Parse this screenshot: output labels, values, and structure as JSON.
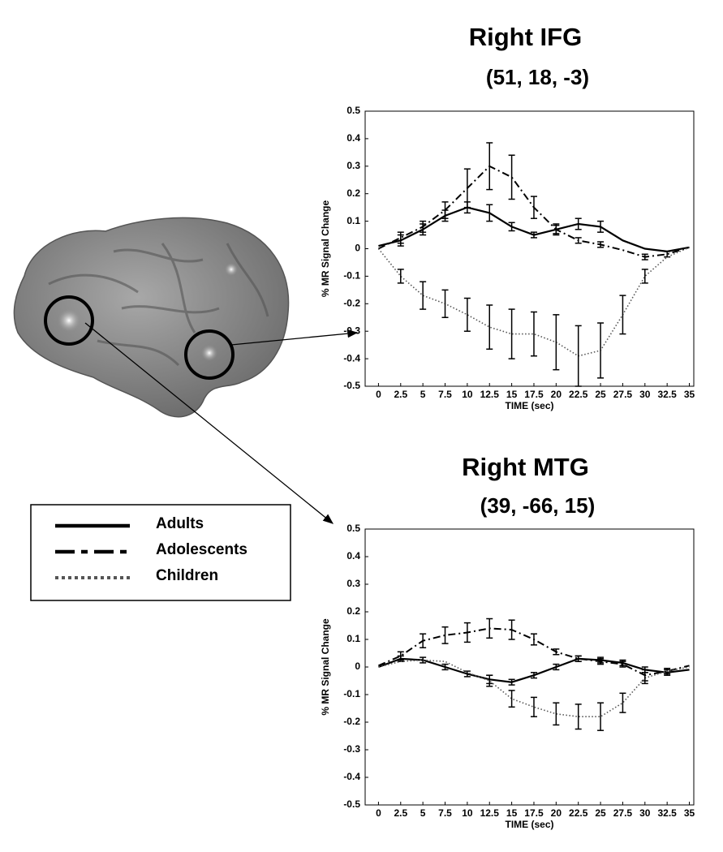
{
  "chart_data": [
    {
      "type": "line",
      "title": "Right IFG",
      "subtitle": "(51, 18, -3)",
      "x_label": "TIME (sec)",
      "y_label": "% MR Signal Change",
      "x": [
        0,
        2.5,
        5,
        7.5,
        10,
        12.5,
        15,
        17.5,
        20,
        22.5,
        25,
        27.5,
        30,
        32.5,
        35
      ],
      "xlim": [
        -1.5,
        35.5
      ],
      "xticks": [
        0,
        2.5,
        5,
        7.5,
        10,
        12.5,
        15,
        17.5,
        20,
        22.5,
        25,
        27.5,
        30,
        32.5,
        35
      ],
      "ylim": [
        -0.5,
        0.5
      ],
      "yticks": [
        -0.5,
        -0.4,
        -0.3,
        -0.2,
        -0.1,
        0,
        0.1,
        0.2,
        0.3,
        0.4,
        0.5
      ],
      "series": [
        {
          "name": "Adults",
          "color": "#000000",
          "style": "solid",
          "values": [
            0.01,
            0.03,
            0.07,
            0.12,
            0.15,
            0.13,
            0.08,
            0.05,
            0.07,
            0.09,
            0.08,
            0.03,
            0.0,
            -0.01,
            0.005
          ],
          "errors": [
            null,
            0.02,
            0.02,
            0.02,
            0.02,
            0.03,
            0.015,
            0.01,
            0.015,
            0.02,
            0.02,
            null,
            null,
            null,
            null
          ]
        },
        {
          "name": "Adolescents",
          "color": "#000000",
          "style": "dashdot",
          "values": [
            0.0,
            0.04,
            0.08,
            0.14,
            0.22,
            0.3,
            0.26,
            0.15,
            0.07,
            0.03,
            0.015,
            -0.005,
            -0.03,
            -0.02,
            0.005
          ],
          "errors": [
            null,
            0.02,
            0.02,
            0.03,
            0.07,
            0.085,
            0.08,
            0.04,
            0.02,
            0.01,
            0.01,
            null,
            0.01,
            0.01,
            null
          ]
        },
        {
          "name": "Children",
          "color": "#555555",
          "style": "dotted",
          "values": [
            0.0,
            -0.1,
            -0.17,
            -0.2,
            -0.24,
            -0.285,
            -0.31,
            -0.31,
            -0.34,
            -0.39,
            -0.37,
            -0.24,
            -0.1,
            -0.03,
            0.005
          ],
          "errors": [
            null,
            0.025,
            0.05,
            0.05,
            0.06,
            0.08,
            0.09,
            0.08,
            0.1,
            0.11,
            0.1,
            0.07,
            0.025,
            null,
            null
          ]
        }
      ]
    },
    {
      "type": "line",
      "title": "Right MTG",
      "subtitle": "(39, -66, 15)",
      "x_label": "TIME (sec)",
      "y_label": "% MR Signal Change",
      "x": [
        0,
        2.5,
        5,
        7.5,
        10,
        12.5,
        15,
        17.5,
        20,
        22.5,
        25,
        27.5,
        30,
        32.5,
        35
      ],
      "xlim": [
        -1.5,
        35.5
      ],
      "xticks": [
        0,
        2.5,
        5,
        7.5,
        10,
        12.5,
        15,
        17.5,
        20,
        22.5,
        25,
        27.5,
        30,
        32.5,
        35
      ],
      "ylim": [
        -0.5,
        0.5
      ],
      "yticks": [
        -0.5,
        -0.4,
        -0.3,
        -0.2,
        -0.1,
        0,
        0.1,
        0.2,
        0.3,
        0.4,
        0.5
      ],
      "series": [
        {
          "color": "#000000",
          "style": "solid",
          "values": [
            0.0,
            0.03,
            0.025,
            0.0,
            -0.025,
            -0.045,
            -0.055,
            -0.03,
            0.0,
            0.03,
            0.025,
            0.015,
            -0.01,
            -0.02,
            -0.01
          ],
          "errors": [
            null,
            0.01,
            0.01,
            0.01,
            0.01,
            0.015,
            0.01,
            0.01,
            0.01,
            0.01,
            0.01,
            0.01,
            0.01,
            0.01,
            null
          ]
        },
        {
          "color": "#000000",
          "style": "dashdot",
          "values": [
            0.005,
            0.04,
            0.095,
            0.115,
            0.125,
            0.14,
            0.135,
            0.1,
            0.055,
            0.03,
            0.02,
            0.01,
            -0.03,
            -0.015,
            0.005
          ],
          "errors": [
            null,
            0.015,
            0.025,
            0.03,
            0.035,
            0.035,
            0.035,
            0.02,
            0.01,
            0.01,
            0.01,
            0.01,
            0.02,
            0.01,
            null
          ]
        },
        {
          "color": "#555555",
          "style": "dotted",
          "values": [
            0.0,
            0.02,
            0.025,
            0.02,
            -0.02,
            -0.05,
            -0.115,
            -0.145,
            -0.17,
            -0.18,
            -0.18,
            -0.13,
            -0.04,
            -0.015,
            0.0
          ],
          "errors": [
            null,
            null,
            null,
            null,
            null,
            0.02,
            0.03,
            0.035,
            0.04,
            0.045,
            0.05,
            0.035,
            0.02,
            null,
            null
          ]
        }
      ]
    }
  ]
}
